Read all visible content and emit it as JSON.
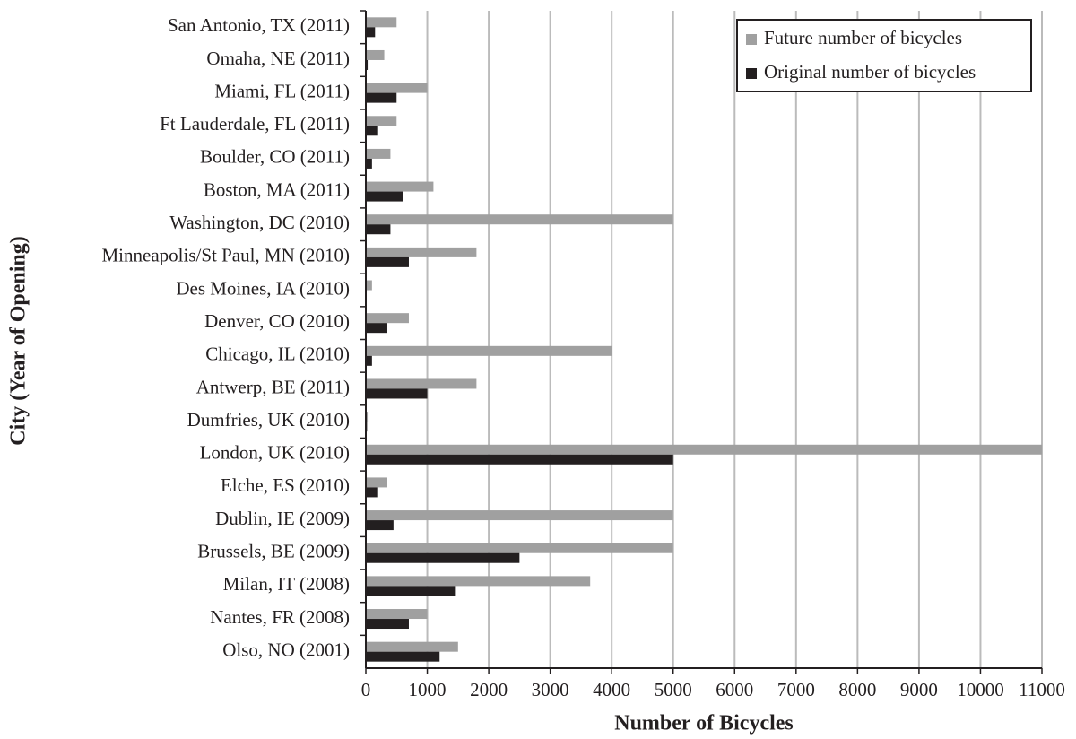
{
  "chart_data": {
    "type": "hbar",
    "x_label": "Number of Bicycles",
    "y_label": "City (Year of Opening)",
    "categories": [
      "San Antonio, TX (2011)",
      "Omaha, NE (2011)",
      "Miami, FL (2011)",
      "Ft Lauderdale, FL (2011)",
      "Boulder, CO (2011)",
      "Boston, MA (2011)",
      "Washington, DC (2010)",
      "Minneapolis/St Paul, MN (2010)",
      "Des Moines, IA (2010)",
      "Denver, CO (2010)",
      "Chicago, IL (2010)",
      "Antwerp, BE (2011)",
      "Dumfries, UK (2010)",
      "London, UK (2010)",
      "Elche, ES (2010)",
      "Dublin, IE (2009)",
      "Brussels, BE (2009)",
      "Milan, IT (2008)",
      "Nantes, FR (2008)",
      "Olso, NO (2001)"
    ],
    "series": [
      {
        "name": "Future number of bicycles",
        "color": "#a0a0a0",
        "values": [
          500,
          300,
          1000,
          500,
          400,
          1100,
          5000,
          1800,
          100,
          700,
          4000,
          1800,
          30,
          11000,
          350,
          5000,
          5000,
          3650,
          1000,
          1500
        ]
      },
      {
        "name": "Original number of bicycles",
        "color": "#231f20",
        "values": [
          150,
          30,
          500,
          200,
          100,
          600,
          400,
          700,
          0,
          350,
          100,
          1000,
          20,
          5000,
          200,
          450,
          2500,
          1450,
          700,
          1200
        ]
      }
    ],
    "xlim": [
      0,
      11000
    ],
    "xticks": [
      0,
      1000,
      2000,
      3000,
      4000,
      5000,
      6000,
      7000,
      8000,
      9000,
      10000,
      11000
    ],
    "grid": true,
    "legend": "top-right"
  }
}
